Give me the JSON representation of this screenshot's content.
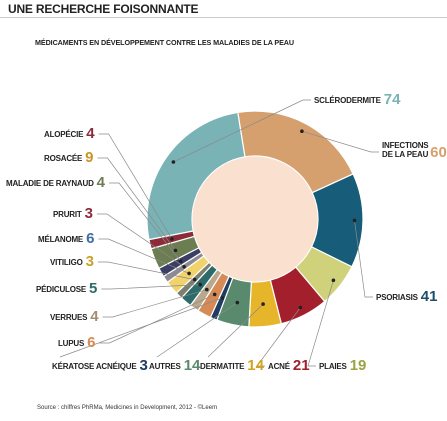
{
  "header": {
    "title": "UNE RECHERCHE FOISONNANTE",
    "subtitle": "MÉDICAMENTS  EN DÉVELOPPEMENT CONTRE LES MALADIES  DE LA PEAU",
    "source": "Source : chiffres PhRMa, Medicines in Development, 2012 - ©Leem"
  },
  "chart_data": {
    "type": "pie",
    "title": "MÉDICAMENTS  EN DÉVELOPPEMENT CONTRE LES MALADIES  DE LA PEAU",
    "donut": true,
    "slices": [
      {
        "label": "SCLÉRODERMITE",
        "value": 74,
        "color": "#7ab3b6"
      },
      {
        "label": "INFECTIONS DE LA PEAU",
        "label_lines": [
          "INFECTIONS",
          "DE LA PEAU"
        ],
        "value": 60,
        "color": "#d6a06e"
      },
      {
        "label": "PSORIASIS",
        "value": 41,
        "color": "#175c78"
      },
      {
        "label": "PLAIES",
        "value": 19,
        "color": "#cfd27a"
      },
      {
        "label": "ACNÉ",
        "value": 21,
        "color": "#a31f2b"
      },
      {
        "label": "DERMATITE",
        "value": 14,
        "color": "#e6b52a"
      },
      {
        "label": "AUTRES",
        "value": 14,
        "color": "#5a8a6e"
      },
      {
        "label": "KÉRATOSE ACNÉIQUE",
        "value": 3,
        "color": "#1f3d63"
      },
      {
        "label": "LUPUS",
        "value": 6,
        "color": "#d68a55"
      },
      {
        "label": "VERRUES",
        "value": 4,
        "color": "#b9a88c"
      },
      {
        "label": "PÉDICULOSE",
        "value": 5,
        "color": "#2d6b6b"
      },
      {
        "label": "VITILIGO",
        "value": 3,
        "color": "#7d7f6e"
      },
      {
        "label": "MÉLANOME",
        "value": 6,
        "color": "#f2d26a"
      },
      {
        "label": "PRURIT",
        "value": 3,
        "color": "#8e8a95"
      },
      {
        "label": "MALADIE DE RAYNAUD",
        "value": 4,
        "color": "#3c3f64"
      },
      {
        "label": "ROSACÉE",
        "value": 9,
        "color": "#6c7d52"
      },
      {
        "label": "ALOPÉCIE",
        "value": 4,
        "color": "#8c2c3a"
      }
    ],
    "label_colors": {
      "SCLÉRODERMITE": "#7ab3b6",
      "INFECTIONS DE LA PEAU": "#d6a06e",
      "PSORIASIS": "#1f4e6b",
      "PLAIES": "#9ca342",
      "ACNÉ": "#a31f2b",
      "DERMATITE": "#d4a21f",
      "AUTRES": "#5a8a6e",
      "KÉRATOSE ACNÉIQUE": "#1f3d63",
      "LUPUS": "#d68a55",
      "VERRUES": "#a08f72",
      "PÉDICULOSE": "#2d6b6b",
      "VITILIGO": "#c9a22a",
      "MÉLANOME": "#3e6fa3",
      "PRURIT": "#8c2c3a",
      "MALADIE DE RAYNAUD": "#6c7d52",
      "ROSACÉE": "#c9952a",
      "ALOPÉCIE": "#8c2c3a"
    },
    "center_color": "#f9e0cf"
  }
}
